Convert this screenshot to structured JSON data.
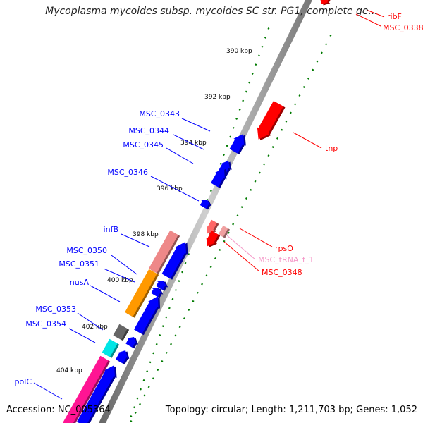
{
  "title": "Mycoplasma mycoides subsp. mycoides SC str. PG1, complete ge...",
  "footer": {
    "accession": "Accession: NC_005364",
    "topology": "Topology: circular; Length: 1,211,703 bp; Genes: 1,052"
  },
  "colors": {
    "forward_strand": "#0000ff",
    "reverse_strand": "#ff0000",
    "trna": "#f598c8",
    "tick": "#007a00",
    "backbone": "#888888"
  },
  "scale": {
    "ticks": [
      "390 kbp",
      "392 kbp",
      "394 kbp",
      "396 kbp",
      "398 kbp",
      "400 kbp",
      "402 kbp",
      "404 kbp"
    ]
  },
  "features": {
    "left_labels": [
      "MSC_0343",
      "MSC_0344",
      "MSC_0345",
      "MSC_0346",
      "infB",
      "MSC_0350",
      "MSC_0351",
      "nusA",
      "MSC_0353",
      "MSC_0354",
      "polC"
    ],
    "right_labels": [
      "ribF",
      "MSC_0338",
      "tnp",
      "rpsO",
      "MSC_tRNA_f_1",
      "MSC_0348"
    ]
  }
}
